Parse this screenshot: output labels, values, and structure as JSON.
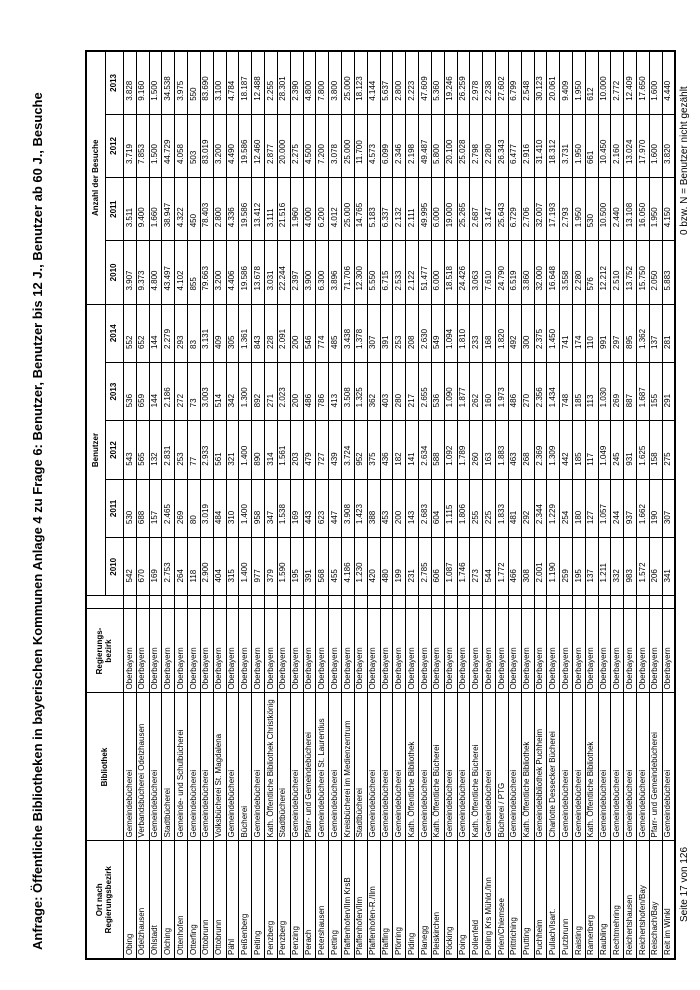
{
  "page": {
    "title": "Anfrage: Öffentliche Bibliotheken in bayerischen Kommunen Anlage 4 zu Frage 6: Benutzer, Benutzer bis 12 J., Benutzer ab 60 J., Besuche",
    "footer_left": "Seite 17 von 126",
    "footer_right": "0 bzw. N = Benutzer nicht gezählt"
  },
  "table": {
    "headers": {
      "ort_line1": "Ort nach",
      "ort_line2": "Regierungsbezirk",
      "bibliothek": "Bibliothek",
      "bezirk_line1": "Regierungs-",
      "bezirk_line2": "bezirk",
      "group_benutzer": "Benutzer",
      "group_besuche": "Anzahl der Besuche",
      "benutzer_years": [
        "2010",
        "2011",
        "2012",
        "2013",
        "2014"
      ],
      "besuche_years": [
        "2010",
        "2011",
        "2012",
        "2013"
      ]
    },
    "rows": [
      {
        "ort": "Obing",
        "bib": "Gemeindebücherei",
        "bz": "Oberbayern",
        "ben": [
          "542",
          "530",
          "543",
          "536",
          "552"
        ],
        "bes": [
          "3.907",
          "3.511",
          "3.719",
          "3.828"
        ]
      },
      {
        "ort": "Odelzhausen",
        "bib": "Verbandsbücherei Odelzhausen",
        "bz": "Oberbayern",
        "ben": [
          "670",
          "688",
          "565",
          "659",
          "652"
        ],
        "bes": [
          "9.373",
          "9.400",
          "7.853",
          "9.160"
        ]
      },
      {
        "ort": "Ohlstadt",
        "bib": "Gemeindebücherei",
        "bz": "Oberbayern",
        "ben": [
          "169",
          "157",
          "132",
          "144",
          "144"
        ],
        "bes": [
          "4.800",
          "1.660",
          "1.500",
          "1.500"
        ]
      },
      {
        "ort": "Olching",
        "bib": "Stadtbücherei",
        "bz": "Oberbayern",
        "ben": [
          "2.753",
          "2.465",
          "2.831",
          "2.186",
          "2.279"
        ],
        "bes": [
          "43.497",
          "38.947",
          "44.729",
          "34.538"
        ]
      },
      {
        "ort": "Ottenhofen",
        "bib": "Gemeinde- und Schulbücherei",
        "bz": "Oberbayern",
        "ben": [
          "264",
          "269",
          "253",
          "272",
          "293"
        ],
        "bes": [
          "4.102",
          "4.322",
          "4.058",
          "3.975"
        ]
      },
      {
        "ort": "Otterfing",
        "bib": "Gemeindebücherei",
        "bz": "Oberbayern",
        "ben": [
          "118",
          "80",
          "77",
          "73",
          "83"
        ],
        "bes": [
          "855",
          "450",
          "503",
          "550"
        ]
      },
      {
        "ort": "Ottobrunn",
        "bib": "Gemeindebücherei",
        "bz": "Oberbayern",
        "ben": [
          "2.900",
          "3.019",
          "2.933",
          "3.003",
          "3.131"
        ],
        "bes": [
          "79.663",
          "78.403",
          "83.019",
          "83.690"
        ]
      },
      {
        "ort": "Ottobrunn",
        "bib": "Volksbücherei St. Magdalena",
        "bz": "Oberbayern",
        "ben": [
          "404",
          "484",
          "561",
          "514",
          "409"
        ],
        "bes": [
          "3.200",
          "2.800",
          "3.200",
          "3.100"
        ]
      },
      {
        "ort": "Pähl",
        "bib": "Gemeindebücherei",
        "bz": "Oberbayern",
        "ben": [
          "315",
          "310",
          "321",
          "342",
          "305"
        ],
        "bes": [
          "4.406",
          "4.336",
          "4.490",
          "4.784"
        ]
      },
      {
        "ort": "Peißenberg",
        "bib": "Bücherei",
        "bz": "Oberbayern",
        "ben": [
          "1.400",
          "1.400",
          "1.400",
          "1.300",
          "1.361"
        ],
        "bes": [
          "19.586",
          "19.586",
          "19.586",
          "18.187"
        ]
      },
      {
        "ort": "Peiting",
        "bib": "Gemeindebücherei",
        "bz": "Oberbayern",
        "ben": [
          "977",
          "958",
          "890",
          "892",
          "843"
        ],
        "bes": [
          "13.678",
          "13.412",
          "12.460",
          "12.488"
        ]
      },
      {
        "ort": "Penzberg",
        "bib": "Kath. Öffentliche Bibliothek Christkönig",
        "bz": "Oberbayern",
        "ben": [
          "379",
          "347",
          "314",
          "271",
          "228"
        ],
        "bes": [
          "3.031",
          "3.111",
          "2.877",
          "2.255"
        ]
      },
      {
        "ort": "Penzberg",
        "bib": "Stadtbücherei",
        "bz": "Oberbayern",
        "ben": [
          "1.590",
          "1.538",
          "1.561",
          "2.023",
          "2.091"
        ],
        "bes": [
          "22.244",
          "21.516",
          "20.000",
          "28.301"
        ]
      },
      {
        "ort": "Penzing",
        "bib": "Gemeindebücherei",
        "bz": "Oberbayern",
        "ben": [
          "195",
          "169",
          "203",
          "200",
          "200"
        ],
        "bes": [
          "2.397",
          "1.960",
          "2.275",
          "2.390"
        ]
      },
      {
        "ort": "Perach",
        "bib": "Pfarr- und Gemeindebücherei",
        "bz": "Oberbayern",
        "ben": [
          "391",
          "443",
          "479",
          "486",
          "546"
        ],
        "bes": [
          "3.900",
          "4.000",
          "4.500",
          "4.800"
        ]
      },
      {
        "ort": "Petershausen",
        "bib": "Gemeindebücherei St. Laurentius",
        "bz": "Oberbayern",
        "ben": [
          "568",
          "623",
          "727",
          "786",
          "774"
        ],
        "bes": [
          "6.300",
          "6.200",
          "7.200",
          "7.800"
        ]
      },
      {
        "ort": "Petting",
        "bib": "Gemeindebücherei",
        "bz": "Oberbayern",
        "ben": [
          "455",
          "447",
          "439",
          "413",
          "485"
        ],
        "bes": [
          "3.896",
          "4.012",
          "3.078",
          "3.800"
        ]
      },
      {
        "ort": "Pfaffenhofen/Ilm KrsB",
        "bib": "Kreisbücherei im Medienzentrum",
        "bz": "Oberbayern",
        "ben": [
          "4.186",
          "3.908",
          "3.724",
          "3.508",
          "3.438"
        ],
        "bes": [
          "71.706",
          "25.000",
          "25.000",
          "25.000"
        ]
      },
      {
        "ort": "Pfaffenhofen/Ilm",
        "bib": "Stadtbücherei",
        "bz": "Oberbayern",
        "ben": [
          "1.230",
          "1.423",
          "952",
          "1.325",
          "1.378"
        ],
        "bes": [
          "12.300",
          "14.765",
          "11.700",
          "18.123"
        ]
      },
      {
        "ort": "Pfaffenhofen-R./Ilm",
        "bib": "Gemeindebücherei",
        "bz": "Oberbayern",
        "ben": [
          "420",
          "388",
          "375",
          "362",
          "307"
        ],
        "bes": [
          "5.550",
          "5.183",
          "4.573",
          "4.144"
        ]
      },
      {
        "ort": "Pfaffing",
        "bib": "Gemeindebücherei",
        "bz": "Oberbayern",
        "ben": [
          "480",
          "453",
          "436",
          "403",
          "391"
        ],
        "bes": [
          "6.715",
          "6.337",
          "6.099",
          "5.637"
        ]
      },
      {
        "ort": "Pförring",
        "bib": "Gemeindebücherei",
        "bz": "Oberbayern",
        "ben": [
          "199",
          "200",
          "182",
          "280",
          "253"
        ],
        "bes": [
          "2.533",
          "2.132",
          "2.346",
          "2.800"
        ]
      },
      {
        "ort": "Piding",
        "bib": "Kath. Öffentliche Bibliothek",
        "bz": "Oberbayern",
        "ben": [
          "231",
          "143",
          "141",
          "217",
          "208"
        ],
        "bes": [
          "2.122",
          "2.111",
          "2.198",
          "2.223"
        ]
      },
      {
        "ort": "Planegg",
        "bib": "Gemeindebücherei",
        "bz": "Oberbayern",
        "ben": [
          "2.785",
          "2.683",
          "2.634",
          "2.655",
          "2.630"
        ],
        "bes": [
          "51.477",
          "49.995",
          "49.487",
          "47.609"
        ]
      },
      {
        "ort": "Pleiskirchen",
        "bib": "Kath. Öffentliche Bücherei",
        "bz": "Oberbayern",
        "ben": [
          "606",
          "604",
          "588",
          "536",
          "549"
        ],
        "bes": [
          "6.000",
          "6.000",
          "5.800",
          "5.360"
        ]
      },
      {
        "ort": "Pöcking",
        "bib": "Gemeindebücherei",
        "bz": "Oberbayern",
        "ben": [
          "1.087",
          "1.115",
          "1.092",
          "1.090",
          "1.094"
        ],
        "bes": [
          "18.518",
          "19.000",
          "20.100",
          "19.246"
        ]
      },
      {
        "ort": "Poing",
        "bib": "Gemeindebücherei",
        "bz": "Oberbayern",
        "ben": [
          "1.746",
          "1.806",
          "1.789",
          "1.877",
          "1.810"
        ],
        "bes": [
          "24.426",
          "25.265",
          "25.028",
          "26.259"
        ]
      },
      {
        "ort": "Pollenfeld",
        "bib": "Kath. Öffentliche Bücherei",
        "bz": "Oberbayern",
        "ben": [
          "273",
          "255",
          "260",
          "262",
          "233"
        ],
        "bes": [
          "3.063",
          "2.687",
          "2.798",
          "2.978"
        ]
      },
      {
        "ort": "Polling Krs Mühld./Inn",
        "bib": "Gemeindebücherei",
        "bz": "Oberbayern",
        "ben": [
          "544",
          "225",
          "163",
          "160",
          "168"
        ],
        "bes": [
          "7.610",
          "3.147",
          "2.280",
          "2.238"
        ]
      },
      {
        "ort": "Prien/Chiemsee",
        "bib": "Bücherei / PTG",
        "bz": "Oberbayern",
        "ben": [
          "1.772",
          "1.833",
          "1.883",
          "1.973",
          "1.820"
        ],
        "bes": [
          "24.790",
          "25.643",
          "26.343",
          "27.602"
        ]
      },
      {
        "ort": "Prittriching",
        "bib": "Gemeindebücherei",
        "bz": "Oberbayern",
        "ben": [
          "466",
          "481",
          "463",
          "486",
          "492"
        ],
        "bes": [
          "6.519",
          "6.729",
          "6.477",
          "6.799"
        ]
      },
      {
        "ort": "Prutting",
        "bib": "Kath. Öffentliche Bibliothek",
        "bz": "Oberbayern",
        "ben": [
          "308",
          "292",
          "268",
          "270",
          "300"
        ],
        "bes": [
          "3.860",
          "2.706",
          "2.916",
          "2.548"
        ]
      },
      {
        "ort": "Puchheim",
        "bib": "Gemeindebibliothek Puchheim",
        "bz": "Oberbayern",
        "ben": [
          "2.001",
          "2.344",
          "2.369",
          "2.356",
          "2.375"
        ],
        "bes": [
          "32.000",
          "32.007",
          "31.410",
          "30.123"
        ]
      },
      {
        "ort": "Pullach/Isart.",
        "bib": "Charlotte Dessecker Bücherei",
        "bz": "Oberbayern",
        "ben": [
          "1.190",
          "1.229",
          "1.309",
          "1.434",
          "1.450"
        ],
        "bes": [
          "16.648",
          "17.193",
          "18.312",
          "20.061"
        ]
      },
      {
        "ort": "Putzbrunn",
        "bib": "Gemeindebücherei",
        "bz": "Oberbayern",
        "ben": [
          "259",
          "254",
          "442",
          "748",
          "741"
        ],
        "bes": [
          "3.558",
          "2.793",
          "3.731",
          "9.409"
        ]
      },
      {
        "ort": "Raisting",
        "bib": "Gemeindebücherei",
        "bz": "Oberbayern",
        "ben": [
          "195",
          "180",
          "185",
          "185",
          "174"
        ],
        "bes": [
          "2.280",
          "1.950",
          "1.950",
          "1.950"
        ]
      },
      {
        "ort": "Ramerberg",
        "bib": "Kath. Öffentliche Bibliothek",
        "bz": "Oberbayern",
        "ben": [
          "137",
          "127",
          "117",
          "113",
          "110"
        ],
        "bes": [
          "576",
          "530",
          "661",
          "612"
        ]
      },
      {
        "ort": "Raubling",
        "bib": "Gemeindebücherei",
        "bz": "Oberbayern",
        "ben": [
          "1.211",
          "1.057",
          "1.049",
          "1.030",
          "991"
        ],
        "bes": [
          "12.212",
          "10.500",
          "10.450",
          "10.000"
        ]
      },
      {
        "ort": "Rechtmehring",
        "bib": "Gemeindebücherei",
        "bz": "Oberbayern",
        "ben": [
          "332",
          "244",
          "245",
          "269",
          "297"
        ],
        "bes": [
          "2.510",
          "2.440",
          "2.160",
          "2.772"
        ]
      },
      {
        "ort": "Reichertshausen",
        "bib": "Gemeindebücherei",
        "bz": "Oberbayern",
        "ben": [
          "983",
          "937",
          "931",
          "887",
          "895"
        ],
        "bes": [
          "13.752",
          "13.108",
          "13.024",
          "12.409"
        ]
      },
      {
        "ort": "Reichertshofen/Bay",
        "bib": "Gemeindebücherei",
        "bz": "Oberbayern",
        "ben": [
          "1.572",
          "1.662",
          "1.625",
          "1.687",
          "1.362"
        ],
        "bes": [
          "15.750",
          "16.050",
          "17.970",
          "17.650"
        ]
      },
      {
        "ort": "Reischach/Bay",
        "bib": "Pfarr- und Gemeindebücherei",
        "bz": "Oberbayern",
        "ben": [
          "206",
          "190",
          "158",
          "155",
          "137"
        ],
        "bes": [
          "2.050",
          "1.950",
          "1.600",
          "1.600"
        ]
      },
      {
        "ort": "Reit im Winkl",
        "bib": "Gemeindebücherei",
        "bz": "Oberbayern",
        "ben": [
          "341",
          "307",
          "275",
          "291",
          "281"
        ],
        "bes": [
          "5.883",
          "4.150",
          "3.820",
          "4.440"
        ]
      }
    ]
  }
}
